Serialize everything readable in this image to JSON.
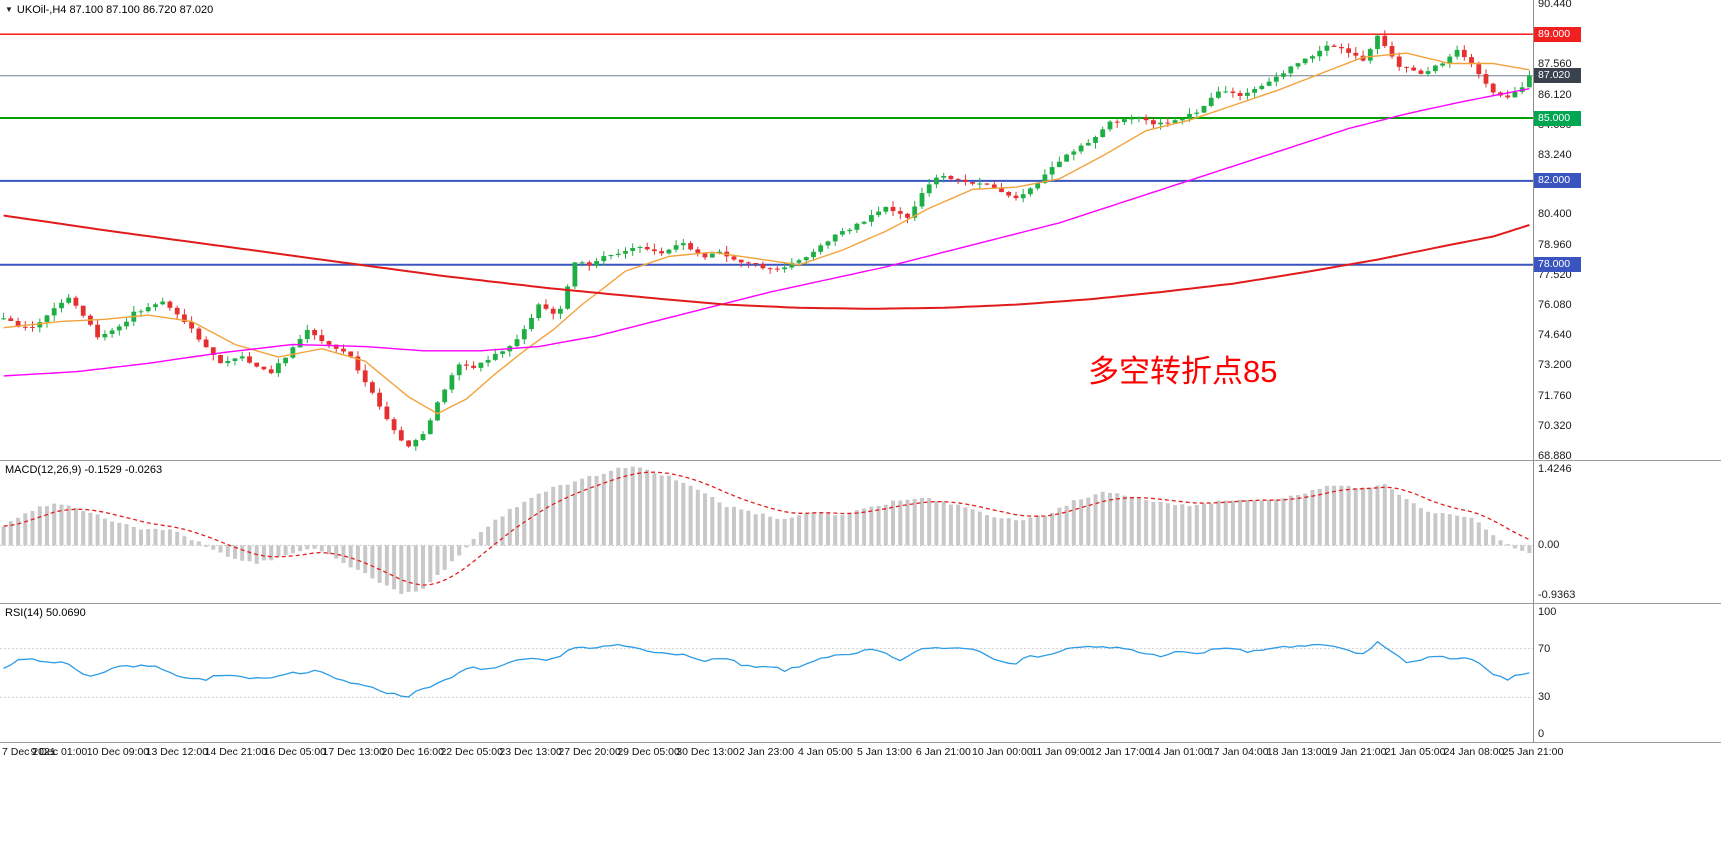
{
  "header": {
    "symbol_line": "UKOil-,H4  87.100 87.100 86.720 87.020"
  },
  "annotation": {
    "text": "多空转折点85",
    "color": "#ff0000"
  },
  "panels": {
    "macd": {
      "header": "MACD(12,26,9) -0.1529 -0.0263"
    },
    "rsi": {
      "header": "RSI(14) 50.0690"
    }
  },
  "time_axis": [
    "7 Dec 2021",
    "9 Dec 01:00",
    "10 Dec 09:00",
    "13 Dec 12:00",
    "14 Dec 21:00",
    "16 Dec 05:00",
    "17 Dec 13:00",
    "20 Dec 16:00",
    "22 Dec 05:00",
    "23 Dec 13:00",
    "27 Dec 20:00",
    "29 Dec 05:00",
    "30 Dec 13:00",
    "2 Jan 23:00",
    "4 Jan 05:00",
    "5 Jan 13:00",
    "6 Jan 21:00",
    "10 Jan 00:00",
    "11 Jan 09:00",
    "12 Jan 17:00",
    "14 Jan 01:00",
    "17 Jan 04:00",
    "18 Jan 13:00",
    "19 Jan 21:00",
    "21 Jan 05:00",
    "24 Jan 08:00",
    "25 Jan 21:00"
  ],
  "chart_data": [
    {
      "type": "candlestick",
      "title": "UKOil-,H4",
      "ohlc": {
        "open": 87.1,
        "high": 87.1,
        "low": 86.72,
        "close": 87.02
      },
      "y_range": [
        68.88,
        90.44
      ],
      "y_ticks": [
        "90.440",
        "89.000",
        "87.560",
        "86.120",
        "84.680",
        "83.240",
        "81.800",
        "80.400",
        "78.960",
        "77.520",
        "76.080",
        "74.640",
        "73.200",
        "71.760",
        "70.320",
        "68.880"
      ],
      "n_candles": 212,
      "up_color": "#1fae45",
      "down_color": "#e53030",
      "close_anchors": [
        [
          0,
          75.4
        ],
        [
          2,
          75.1
        ],
        [
          4,
          75.0
        ],
        [
          6,
          75.6
        ],
        [
          9,
          76.4
        ],
        [
          11,
          75.6
        ],
        [
          13,
          74.6
        ],
        [
          16,
          75.0
        ],
        [
          18,
          75.7
        ],
        [
          22,
          76.2
        ],
        [
          24,
          75.6
        ],
        [
          26,
          74.9
        ],
        [
          28,
          74.0
        ],
        [
          30,
          73.3
        ],
        [
          33,
          73.6
        ],
        [
          35,
          73.1
        ],
        [
          37,
          72.9
        ],
        [
          39,
          73.6
        ],
        [
          42,
          74.9
        ],
        [
          44,
          74.3
        ],
        [
          46,
          74.0
        ],
        [
          48,
          73.6
        ],
        [
          51,
          71.9
        ],
        [
          53,
          70.6
        ],
        [
          55,
          69.6
        ],
        [
          56,
          69.3
        ],
        [
          58,
          69.9
        ],
        [
          60,
          71.4
        ],
        [
          63,
          73.3
        ],
        [
          65,
          73.1
        ],
        [
          68,
          73.7
        ],
        [
          71,
          74.4
        ],
        [
          74,
          76.1
        ],
        [
          76,
          75.7
        ],
        [
          77,
          75.9
        ],
        [
          79,
          78.1
        ],
        [
          81,
          78.0
        ],
        [
          83,
          78.4
        ],
        [
          86,
          78.6
        ],
        [
          88,
          78.9
        ],
        [
          91,
          78.6
        ],
        [
          94,
          79.0
        ],
        [
          97,
          78.4
        ],
        [
          99,
          78.6
        ],
        [
          101,
          78.2
        ],
        [
          104,
          78.0
        ],
        [
          106,
          77.8
        ],
        [
          108,
          77.9
        ],
        [
          110,
          78.2
        ],
        [
          113,
          78.9
        ],
        [
          115,
          79.4
        ],
        [
          117,
          79.7
        ],
        [
          119,
          80.1
        ],
        [
          122,
          80.8
        ],
        [
          124,
          80.4
        ],
        [
          125,
          80.3
        ],
        [
          128,
          81.9
        ],
        [
          130,
          82.3
        ],
        [
          132,
          82.0
        ],
        [
          135,
          81.9
        ],
        [
          138,
          81.5
        ],
        [
          140,
          81.2
        ],
        [
          143,
          81.9
        ],
        [
          145,
          82.6
        ],
        [
          147,
          83.3
        ],
        [
          150,
          83.8
        ],
        [
          153,
          84.8
        ],
        [
          155,
          84.9
        ],
        [
          157,
          85.0
        ],
        [
          159,
          84.7
        ],
        [
          161,
          84.8
        ],
        [
          163,
          85.0
        ],
        [
          165,
          85.3
        ],
        [
          168,
          86.3
        ],
        [
          171,
          86.1
        ],
        [
          174,
          86.5
        ],
        [
          176,
          86.9
        ],
        [
          178,
          87.4
        ],
        [
          181,
          88.0
        ],
        [
          183,
          88.5
        ],
        [
          185,
          88.3
        ],
        [
          188,
          87.8
        ],
        [
          190,
          88.9
        ],
        [
          193,
          87.5
        ],
        [
          196,
          87.1
        ],
        [
          199,
          87.6
        ],
        [
          201,
          88.3
        ],
        [
          203,
          87.6
        ],
        [
          206,
          86.2
        ],
        [
          208,
          86.0
        ],
        [
          210,
          86.5
        ],
        [
          211,
          87.02
        ]
      ],
      "h_lines": [
        {
          "value": 89.0,
          "label": "89.000",
          "color": "#ff0000",
          "badge_bg": "#f02020",
          "width": 1.4
        },
        {
          "value": 87.02,
          "label": "87.020",
          "color": "#70808f",
          "badge_bg": "#39424d",
          "width": 1
        },
        {
          "value": 85.0,
          "label": "85.000",
          "color": "#00a000",
          "badge_bg": "#00a651",
          "width": 2
        },
        {
          "value": 82.0,
          "label": "82.000",
          "color": "#3a55c0",
          "badge_bg": "#3a55c0",
          "width": 2
        },
        {
          "value": 78.0,
          "label": "78.000",
          "color": "#3a55c0",
          "badge_bg": "#3a55c0",
          "width": 2
        }
      ],
      "ma_lines": [
        {
          "name": "fast-ma-line",
          "color": "#f2a33c",
          "width": 1.4,
          "anchors": [
            [
              0,
              75.0
            ],
            [
              8,
              75.3
            ],
            [
              14,
              75.4
            ],
            [
              20,
              75.6
            ],
            [
              26,
              75.3
            ],
            [
              32,
              74.2
            ],
            [
              38,
              73.6
            ],
            [
              44,
              74.0
            ],
            [
              50,
              73.4
            ],
            [
              56,
              71.7
            ],
            [
              60,
              70.9
            ],
            [
              64,
              71.6
            ],
            [
              68,
              72.8
            ],
            [
              72,
              73.9
            ],
            [
              76,
              74.9
            ],
            [
              80,
              76.1
            ],
            [
              86,
              77.7
            ],
            [
              92,
              78.4
            ],
            [
              98,
              78.6
            ],
            [
              104,
              78.3
            ],
            [
              110,
              78.0
            ],
            [
              116,
              78.7
            ],
            [
              122,
              79.6
            ],
            [
              128,
              80.7
            ],
            [
              134,
              81.6
            ],
            [
              140,
              81.7
            ],
            [
              146,
              82.1
            ],
            [
              152,
              83.2
            ],
            [
              158,
              84.4
            ],
            [
              164,
              84.9
            ],
            [
              170,
              85.6
            ],
            [
              176,
              86.3
            ],
            [
              182,
              87.1
            ],
            [
              188,
              87.9
            ],
            [
              194,
              88.1
            ],
            [
              200,
              87.6
            ],
            [
              206,
              87.6
            ],
            [
              211,
              87.3
            ]
          ]
        },
        {
          "name": "mid-ma-line",
          "color": "#ff00ff",
          "width": 1.4,
          "anchors": [
            [
              0,
              72.7
            ],
            [
              10,
              72.9
            ],
            [
              20,
              73.3
            ],
            [
              30,
              73.8
            ],
            [
              40,
              74.2
            ],
            [
              50,
              74.1
            ],
            [
              58,
              73.9
            ],
            [
              66,
              73.9
            ],
            [
              74,
              74.1
            ],
            [
              82,
              74.6
            ],
            [
              90,
              75.3
            ],
            [
              98,
              76.0
            ],
            [
              106,
              76.7
            ],
            [
              114,
              77.3
            ],
            [
              122,
              77.9
            ],
            [
              130,
              78.6
            ],
            [
              138,
              79.3
            ],
            [
              146,
              80.0
            ],
            [
              154,
              80.9
            ],
            [
              162,
              81.8
            ],
            [
              170,
              82.7
            ],
            [
              178,
              83.6
            ],
            [
              186,
              84.5
            ],
            [
              194,
              85.2
            ],
            [
              202,
              85.8
            ],
            [
              211,
              86.4
            ]
          ]
        },
        {
          "name": "slow-ma-line",
          "color": "#e11b1b",
          "width": 2,
          "anchors": [
            [
              0,
              80.35
            ],
            [
              15,
              79.6
            ],
            [
              30,
              78.9
            ],
            [
              45,
              78.2
            ],
            [
              60,
              77.5
            ],
            [
              75,
              76.9
            ],
            [
              90,
              76.4
            ],
            [
              100,
              76.1
            ],
            [
              110,
              75.95
            ],
            [
              120,
              75.9
            ],
            [
              130,
              75.95
            ],
            [
              140,
              76.1
            ],
            [
              150,
              76.35
            ],
            [
              160,
              76.7
            ],
            [
              170,
              77.1
            ],
            [
              180,
              77.65
            ],
            [
              190,
              78.25
            ],
            [
              200,
              78.95
            ],
            [
              206,
              79.35
            ],
            [
              211,
              79.9
            ]
          ]
        }
      ]
    },
    {
      "type": "bar",
      "name": "MACD",
      "params": "12,26,9",
      "values_display": [
        "-0.1529",
        "-0.0263"
      ],
      "y_range": [
        -0.9363,
        1.4246
      ],
      "y_ticks": [
        "1.4246",
        "0.00",
        "-0.9363"
      ],
      "histogram_color": "#c8c8c8",
      "signal_color": "#e02020",
      "anchors": [
        [
          0,
          0.35
        ],
        [
          4,
          0.65
        ],
        [
          7,
          0.78
        ],
        [
          11,
          0.65
        ],
        [
          15,
          0.45
        ],
        [
          19,
          0.3
        ],
        [
          23,
          0.28
        ],
        [
          27,
          0.05
        ],
        [
          31,
          -0.2
        ],
        [
          35,
          -0.33
        ],
        [
          39,
          -0.18
        ],
        [
          43,
          -0.05
        ],
        [
          47,
          -0.3
        ],
        [
          51,
          -0.6
        ],
        [
          55,
          -0.88
        ],
        [
          58,
          -0.8
        ],
        [
          62,
          -0.3
        ],
        [
          66,
          0.25
        ],
        [
          70,
          0.65
        ],
        [
          75,
          1.0
        ],
        [
          80,
          1.2
        ],
        [
          85,
          1.4
        ],
        [
          88,
          1.42
        ],
        [
          92,
          1.25
        ],
        [
          96,
          1.0
        ],
        [
          100,
          0.72
        ],
        [
          104,
          0.58
        ],
        [
          108,
          0.48
        ],
        [
          112,
          0.62
        ],
        [
          116,
          0.55
        ],
        [
          120,
          0.7
        ],
        [
          124,
          0.82
        ],
        [
          128,
          0.85
        ],
        [
          132,
          0.72
        ],
        [
          136,
          0.55
        ],
        [
          140,
          0.45
        ],
        [
          144,
          0.55
        ],
        [
          148,
          0.8
        ],
        [
          152,
          0.95
        ],
        [
          156,
          0.9
        ],
        [
          160,
          0.78
        ],
        [
          164,
          0.72
        ],
        [
          168,
          0.8
        ],
        [
          172,
          0.85
        ],
        [
          176,
          0.82
        ],
        [
          180,
          0.95
        ],
        [
          184,
          1.1
        ],
        [
          188,
          1.05
        ],
        [
          191,
          1.1
        ],
        [
          194,
          0.85
        ],
        [
          197,
          0.6
        ],
        [
          200,
          0.55
        ],
        [
          203,
          0.5
        ],
        [
          206,
          0.2
        ],
        [
          208,
          0.0
        ],
        [
          211,
          -0.15
        ]
      ]
    },
    {
      "type": "line",
      "name": "RSI",
      "period": 14,
      "value_display": "50.0690",
      "y_range": [
        0,
        100
      ],
      "y_ticks": [
        "100",
        "70",
        "30",
        "0"
      ],
      "levels": [
        70,
        30
      ],
      "line_color": "#2e9be6",
      "anchors": [
        [
          0,
          55
        ],
        [
          4,
          62
        ],
        [
          8,
          58
        ],
        [
          12,
          48
        ],
        [
          16,
          55
        ],
        [
          20,
          57
        ],
        [
          24,
          48
        ],
        [
          28,
          45
        ],
        [
          32,
          48
        ],
        [
          36,
          44
        ],
        [
          40,
          52
        ],
        [
          44,
          50
        ],
        [
          48,
          42
        ],
        [
          52,
          36
        ],
        [
          56,
          31
        ],
        [
          60,
          42
        ],
        [
          64,
          52
        ],
        [
          68,
          55
        ],
        [
          72,
          60
        ],
        [
          76,
          62
        ],
        [
          79,
          70
        ],
        [
          84,
          72
        ],
        [
          88,
          70
        ],
        [
          92,
          66
        ],
        [
          96,
          62
        ],
        [
          100,
          60
        ],
        [
          104,
          55
        ],
        [
          108,
          52
        ],
        [
          112,
          60
        ],
        [
          116,
          65
        ],
        [
          120,
          68
        ],
        [
          124,
          62
        ],
        [
          128,
          70
        ],
        [
          132,
          72
        ],
        [
          136,
          65
        ],
        [
          140,
          58
        ],
        [
          144,
          66
        ],
        [
          148,
          70
        ],
        [
          152,
          72
        ],
        [
          156,
          68
        ],
        [
          160,
          65
        ],
        [
          164,
          66
        ],
        [
          168,
          70
        ],
        [
          172,
          68
        ],
        [
          176,
          70
        ],
        [
          180,
          73
        ],
        [
          184,
          71
        ],
        [
          188,
          66
        ],
        [
          190,
          74
        ],
        [
          194,
          60
        ],
        [
          198,
          62
        ],
        [
          202,
          64
        ],
        [
          206,
          48
        ],
        [
          208,
          46
        ],
        [
          211,
          50.07
        ]
      ]
    }
  ]
}
